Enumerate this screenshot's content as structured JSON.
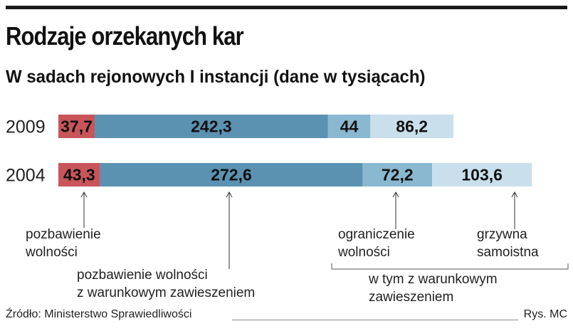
{
  "title": "Rodzaje orzekanych kar",
  "subtitle": "W sadach rejonowych I instancji (dane w tysiącach)",
  "colors": {
    "pozbawienie": "#c8555a",
    "zawieszenie": "#5b92b2",
    "ograniczenie": "#8ab8d1",
    "grzywna": "#c9e0ec"
  },
  "chart_data": {
    "type": "bar",
    "orientation": "horizontal",
    "stacked": true,
    "categories": [
      "2009",
      "2004"
    ],
    "series": [
      {
        "name": "pozbawienie wolności",
        "color_key": "pozbawienie",
        "values": [
          37.7,
          43.3
        ],
        "labels": [
          "37,7",
          "43,3"
        ]
      },
      {
        "name": "pozbawienie wolności z warunkowym zawieszeniem",
        "color_key": "zawieszenie",
        "values": [
          242.3,
          272.6
        ],
        "labels": [
          "242,3",
          "272,6"
        ]
      },
      {
        "name": "ograniczenie wolności",
        "color_key": "ograniczenie",
        "values": [
          44,
          72.2
        ],
        "labels": [
          "44",
          "72,2"
        ]
      },
      {
        "name": "grzywna samoistna",
        "color_key": "grzywna",
        "values": [
          86.2,
          103.6
        ],
        "labels": [
          "86,2",
          "103,6"
        ]
      }
    ],
    "annotations": [
      {
        "lines": [
          "pozbawienie",
          "wolności"
        ],
        "series": 0
      },
      {
        "lines": [
          "pozbawienie wolności",
          "z warunkowym zawieszeniem"
        ],
        "series": 1
      },
      {
        "lines": [
          "ograniczenie",
          "wolności"
        ],
        "series": 2
      },
      {
        "lines": [
          "grzywna",
          "samoistna"
        ],
        "series": 3
      },
      {
        "lines": [
          "w tym z warunkowym",
          "zawieszeniem"
        ],
        "brace_over": [
          2,
          3
        ]
      }
    ]
  },
  "source": "Źródło: Ministerstwo Sprawiedliwości",
  "credit": "Rys. MC"
}
